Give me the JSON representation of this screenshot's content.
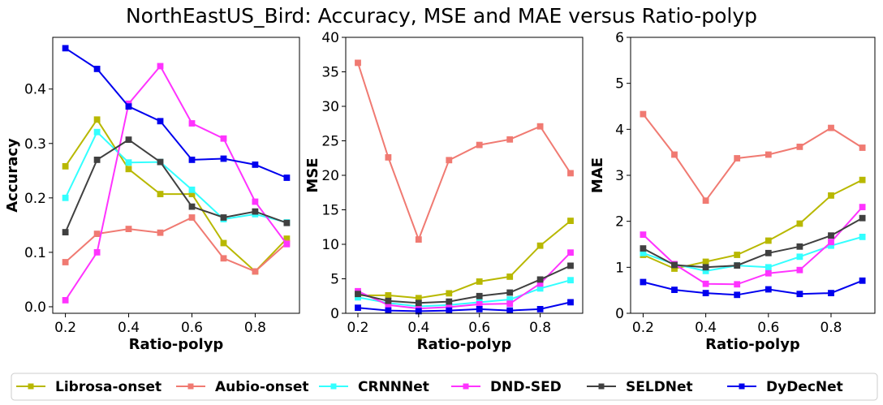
{
  "title": "NorthEastUS_Bird: Accuracy, MSE and MAE versus Ratio-polyp",
  "legend": {
    "location": "bottom",
    "items": [
      {
        "label": "Librosa-onset",
        "color": "#b8b800"
      },
      {
        "label": "Aubio-onset",
        "color": "#f07a72"
      },
      {
        "label": "CRNNNet",
        "color": "#33ffff"
      },
      {
        "label": "DND-SED",
        "color": "#ff33ff"
      },
      {
        "label": "SELDNet",
        "color": "#404040"
      },
      {
        "label": "DyDecNet",
        "color": "#0000ee"
      }
    ]
  },
  "chart_data": [
    {
      "type": "line",
      "xlabel": "Ratio-polyp",
      "ylabel": "Accuracy",
      "x": [
        0.2,
        0.3,
        0.4,
        0.5,
        0.6,
        0.7,
        0.8,
        0.9
      ],
      "xlim": [
        0.16,
        0.94
      ],
      "ylim": [
        -0.012,
        0.495
      ],
      "xticks": [
        0.2,
        0.4,
        0.6,
        0.8
      ],
      "xtick_labels": [
        "0.2",
        "0.4",
        "0.6",
        "0.8"
      ],
      "yticks": [
        0.0,
        0.1,
        0.2,
        0.3,
        0.4
      ],
      "ytick_labels": [
        "0.0",
        "0.1",
        "0.2",
        "0.3",
        "0.4"
      ],
      "grid": false,
      "series": [
        {
          "name": "Librosa-onset",
          "color": "#b8b800",
          "values": [
            0.258,
            0.344,
            0.253,
            0.207,
            0.207,
            0.117,
            0.065,
            0.125
          ]
        },
        {
          "name": "Aubio-onset",
          "color": "#f07a72",
          "values": [
            0.082,
            0.134,
            0.143,
            0.136,
            0.164,
            0.089,
            0.065,
            0.117
          ]
        },
        {
          "name": "CRNNNet",
          "color": "#33ffff",
          "values": [
            0.2,
            0.321,
            0.265,
            0.266,
            0.215,
            0.161,
            0.17,
            0.155
          ]
        },
        {
          "name": "DND-SED",
          "color": "#ff33ff",
          "values": [
            0.012,
            0.1,
            0.373,
            0.442,
            0.337,
            0.309,
            0.193,
            0.115
          ]
        },
        {
          "name": "SELDNet",
          "color": "#404040",
          "values": [
            0.137,
            0.27,
            0.307,
            0.266,
            0.184,
            0.164,
            0.175,
            0.154
          ]
        },
        {
          "name": "DyDecNet",
          "color": "#0000ee",
          "values": [
            0.475,
            0.437,
            0.368,
            0.341,
            0.27,
            0.272,
            0.261,
            0.237
          ]
        }
      ]
    },
    {
      "type": "line",
      "xlabel": "Ratio-polyp",
      "ylabel": "MSE",
      "x": [
        0.2,
        0.3,
        0.4,
        0.5,
        0.6,
        0.7,
        0.8,
        0.9
      ],
      "xlim": [
        0.16,
        0.94
      ],
      "ylim": [
        0,
        40
      ],
      "xticks": [
        0.2,
        0.4,
        0.6,
        0.8
      ],
      "xtick_labels": [
        "0.2",
        "0.4",
        "0.6",
        "0.8"
      ],
      "yticks": [
        0,
        5,
        10,
        15,
        20,
        25,
        30,
        35,
        40
      ],
      "ytick_labels": [
        "0",
        "5",
        "10",
        "15",
        "20",
        "25",
        "30",
        "35",
        "40"
      ],
      "grid": false,
      "series": [
        {
          "name": "Librosa-onset",
          "color": "#b8b800",
          "values": [
            2.6,
            2.6,
            2.2,
            2.9,
            4.6,
            5.3,
            9.8,
            13.4
          ]
        },
        {
          "name": "Aubio-onset",
          "color": "#f07a72",
          "values": [
            36.3,
            22.6,
            10.7,
            22.2,
            24.4,
            25.2,
            27.1,
            20.3
          ]
        },
        {
          "name": "CRNNNet",
          "color": "#33ffff",
          "values": [
            2.3,
            1.5,
            1.0,
            1.2,
            1.6,
            2.0,
            3.6,
            4.8
          ]
        },
        {
          "name": "DND-SED",
          "color": "#ff33ff",
          "values": [
            3.2,
            1.2,
            0.7,
            0.9,
            1.3,
            1.4,
            4.3,
            8.8
          ]
        },
        {
          "name": "SELDNet",
          "color": "#404040",
          "values": [
            2.8,
            1.8,
            1.5,
            1.7,
            2.5,
            3.0,
            4.9,
            6.9
          ]
        },
        {
          "name": "DyDecNet",
          "color": "#0000ee",
          "values": [
            0.8,
            0.4,
            0.3,
            0.4,
            0.6,
            0.4,
            0.6,
            1.6
          ]
        }
      ]
    },
    {
      "type": "line",
      "xlabel": "Ratio-polyp",
      "ylabel": "MAE",
      "x": [
        0.2,
        0.3,
        0.4,
        0.5,
        0.6,
        0.7,
        0.8,
        0.9
      ],
      "xlim": [
        0.16,
        0.94
      ],
      "ylim": [
        0,
        6
      ],
      "xticks": [
        0.2,
        0.4,
        0.6,
        0.8
      ],
      "xtick_labels": [
        "0.2",
        "0.4",
        "0.6",
        "0.8"
      ],
      "yticks": [
        0,
        1,
        2,
        3,
        4,
        5,
        6
      ],
      "ytick_labels": [
        "0",
        "1",
        "2",
        "3",
        "4",
        "5",
        "6"
      ],
      "grid": false,
      "series": [
        {
          "name": "Librosa-onset",
          "color": "#b8b800",
          "values": [
            1.27,
            0.97,
            1.12,
            1.27,
            1.58,
            1.95,
            2.56,
            2.9
          ]
        },
        {
          "name": "Aubio-onset",
          "color": "#f07a72",
          "values": [
            4.33,
            3.45,
            2.45,
            3.37,
            3.45,
            3.62,
            4.03,
            3.6
          ]
        },
        {
          "name": "CRNNNet",
          "color": "#33ffff",
          "values": [
            1.31,
            1.07,
            0.92,
            1.04,
            1.0,
            1.23,
            1.47,
            1.66
          ]
        },
        {
          "name": "DND-SED",
          "color": "#ff33ff",
          "values": [
            1.71,
            1.07,
            0.64,
            0.63,
            0.87,
            0.94,
            1.55,
            2.31
          ]
        },
        {
          "name": "SELDNet",
          "color": "#404040",
          "values": [
            1.41,
            1.05,
            1.0,
            1.04,
            1.31,
            1.45,
            1.69,
            2.07
          ]
        },
        {
          "name": "DyDecNet",
          "color": "#0000ee",
          "values": [
            0.68,
            0.51,
            0.44,
            0.4,
            0.52,
            0.42,
            0.44,
            0.71
          ]
        }
      ]
    }
  ]
}
